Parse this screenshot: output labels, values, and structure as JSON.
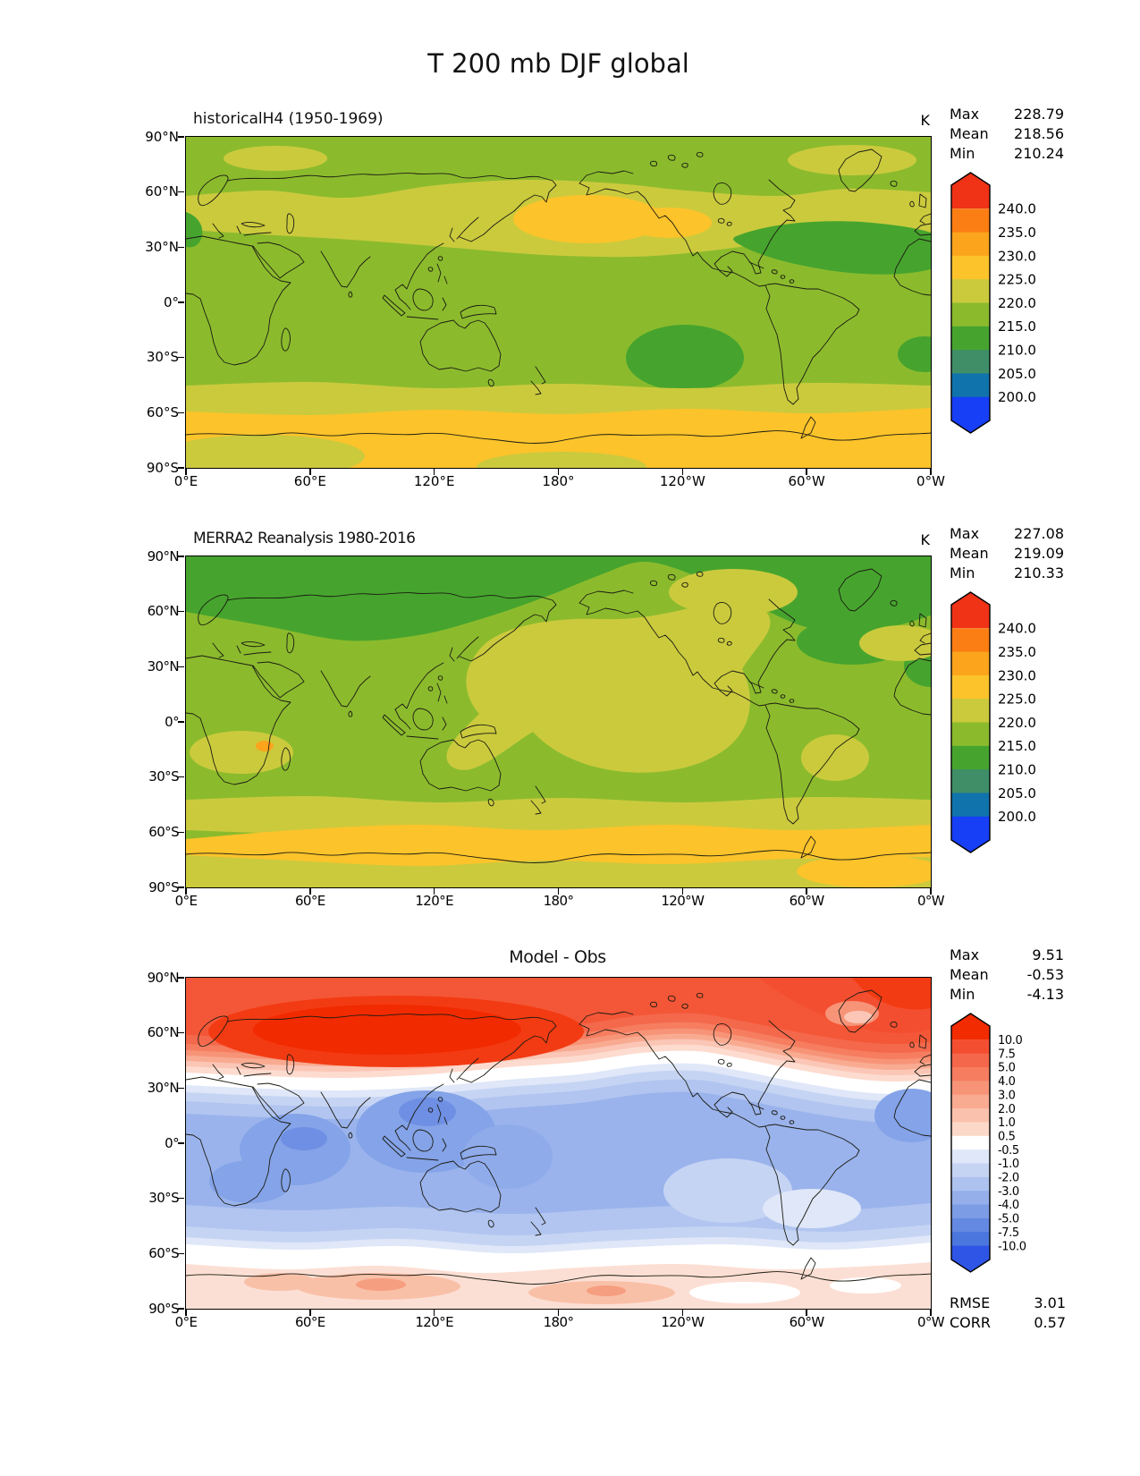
{
  "figure_title": "T 200 mb DJF global",
  "axes": {
    "xticks": [
      "0°E",
      "60°E",
      "120°E",
      "180°",
      "120°W",
      "60°W",
      "0°W"
    ],
    "yticks": [
      "90°N",
      "60°N",
      "30°N",
      "0°",
      "30°S",
      "60°S",
      "90°S"
    ]
  },
  "panels": [
    {
      "title": "historicalH4 (1950-1969)",
      "unit": "K",
      "stats": [
        {
          "label": "Max",
          "value": "228.79"
        },
        {
          "label": "Mean",
          "value": "218.56"
        },
        {
          "label": "Min",
          "value": "210.24"
        }
      ],
      "colorbar": {
        "ticks": [
          "240.0",
          "235.0",
          "230.0",
          "225.0",
          "220.0",
          "215.0",
          "210.0",
          "205.0",
          "200.0"
        ],
        "colors": [
          "#f03217",
          "#fb7e14",
          "#fba41c",
          "#fcc32b",
          "#cbca3d",
          "#8bbb2d",
          "#46a42e",
          "#3f8e68",
          "#1173ac",
          "#173ff5"
        ]
      }
    },
    {
      "title": "MERRA2 Reanalysis 1980-2016",
      "unit": "K",
      "stats": [
        {
          "label": "Max",
          "value": "227.08"
        },
        {
          "label": "Mean",
          "value": "219.09"
        },
        {
          "label": "Min",
          "value": "210.33"
        }
      ],
      "colorbar": {
        "ticks": [
          "240.0",
          "235.0",
          "230.0",
          "225.0",
          "220.0",
          "215.0",
          "210.0",
          "205.0",
          "200.0"
        ],
        "colors": [
          "#f03217",
          "#fb7e14",
          "#fba41c",
          "#fcc32b",
          "#cbca3d",
          "#8bbb2d",
          "#46a42e",
          "#3f8e68",
          "#1173ac",
          "#173ff5"
        ]
      }
    },
    {
      "title": "Model - Obs",
      "stats": [
        {
          "label": "Max",
          "value": "9.51"
        },
        {
          "label": "Mean",
          "value": "-0.53"
        },
        {
          "label": "Min",
          "value": "-4.13"
        }
      ],
      "colorbar": {
        "ticks": [
          "10.0",
          "7.5",
          "5.0",
          "4.0",
          "3.0",
          "2.0",
          "1.0",
          "0.5",
          "-0.5",
          "-1.0",
          "-2.0",
          "-3.0",
          "-4.0",
          "-5.0",
          "-7.5",
          "-10.0"
        ],
        "colors": [
          "#f22b00",
          "#f44e31",
          "#f5674a",
          "#f67d60",
          "#f79478",
          "#f9ab92",
          "#fac2ac",
          "#fcd8c8",
          "#ffffff",
          "#dfe7f8",
          "#c6d4f4",
          "#adc2ef",
          "#95afeb",
          "#7c9ce6",
          "#6489e2",
          "#4b76dd",
          "#2e55e6"
        ]
      },
      "metrics": [
        {
          "label": "RMSE",
          "value": "3.01"
        },
        {
          "label": "CORR",
          "value": "0.57"
        }
      ]
    }
  ],
  "chart_data": {
    "type": "heatmap",
    "subtype": "filled_contour_global_maps",
    "variable": "T",
    "level": "200 mb",
    "season": "DJF",
    "domain": "global",
    "units": "K",
    "lon_range_deg_east": [
      0,
      360
    ],
    "lat_range_deg": [
      -90,
      90
    ],
    "contour_levels_K": [
      200,
      205,
      210,
      215,
      220,
      225,
      230,
      235,
      240
    ],
    "diff_contour_levels_K": [
      -10,
      -7.5,
      -5,
      -4,
      -3,
      -2,
      -1,
      -0.5,
      0.5,
      1,
      2,
      3,
      4,
      5,
      7.5,
      10
    ],
    "panels": [
      {
        "name": "model",
        "title": "historicalH4 (1950-1969)",
        "max": 228.79,
        "mean": 218.56,
        "min": 210.24,
        "features": [
          "Background mostly 215-220 K (olive green)",
          "220-225 K belt across 30-55N and again near 50-60S",
          "225-230 K warm patch over NW Pacific / Japan near 45N",
          "Broad 225-230 K belt from about 60S to the pole with 220-225 K patches over interior Antarctica",
          "210-215 K cool patches near NW Africa, subtropical N Atlantic / Caribbean, SE Pacific near 30S"
        ]
      },
      {
        "name": "reference",
        "title": "MERRA2 Reanalysis 1980-2016",
        "max": 227.08,
        "mean": 219.09,
        "min": 210.33,
        "features": [
          "210-215 K across most Arctic latitudes",
          "Large 220-225 K warm pool over central/NE Pacific extending to the tropics and N Australia",
          "220-225 K patches over southern Africa (small 225-230 K spot) and subtropical S America",
          "225-230 K belt near 60-70S, 220-225 K around Antarctica",
          "Mostly 215-220 K elsewhere"
        ]
      },
      {
        "name": "difference",
        "title": "Model - Obs",
        "max": 9.51,
        "mean": -0.53,
        "min": -4.13,
        "rmse": 3.01,
        "corr": 0.57,
        "features": [
          "Warm bias +3 to +9 K poleward of about 40N, strongest over Siberia/Eurasia",
          "Cool bias -1 to -4 K from about 30N to 45S, deepest over S Asia and the Indian Ocean",
          "Near-zero white band around 50-60S",
          "Weak warm bias +0.5 to +2 K near 60-70S and around Antarctica"
        ]
      }
    ]
  }
}
